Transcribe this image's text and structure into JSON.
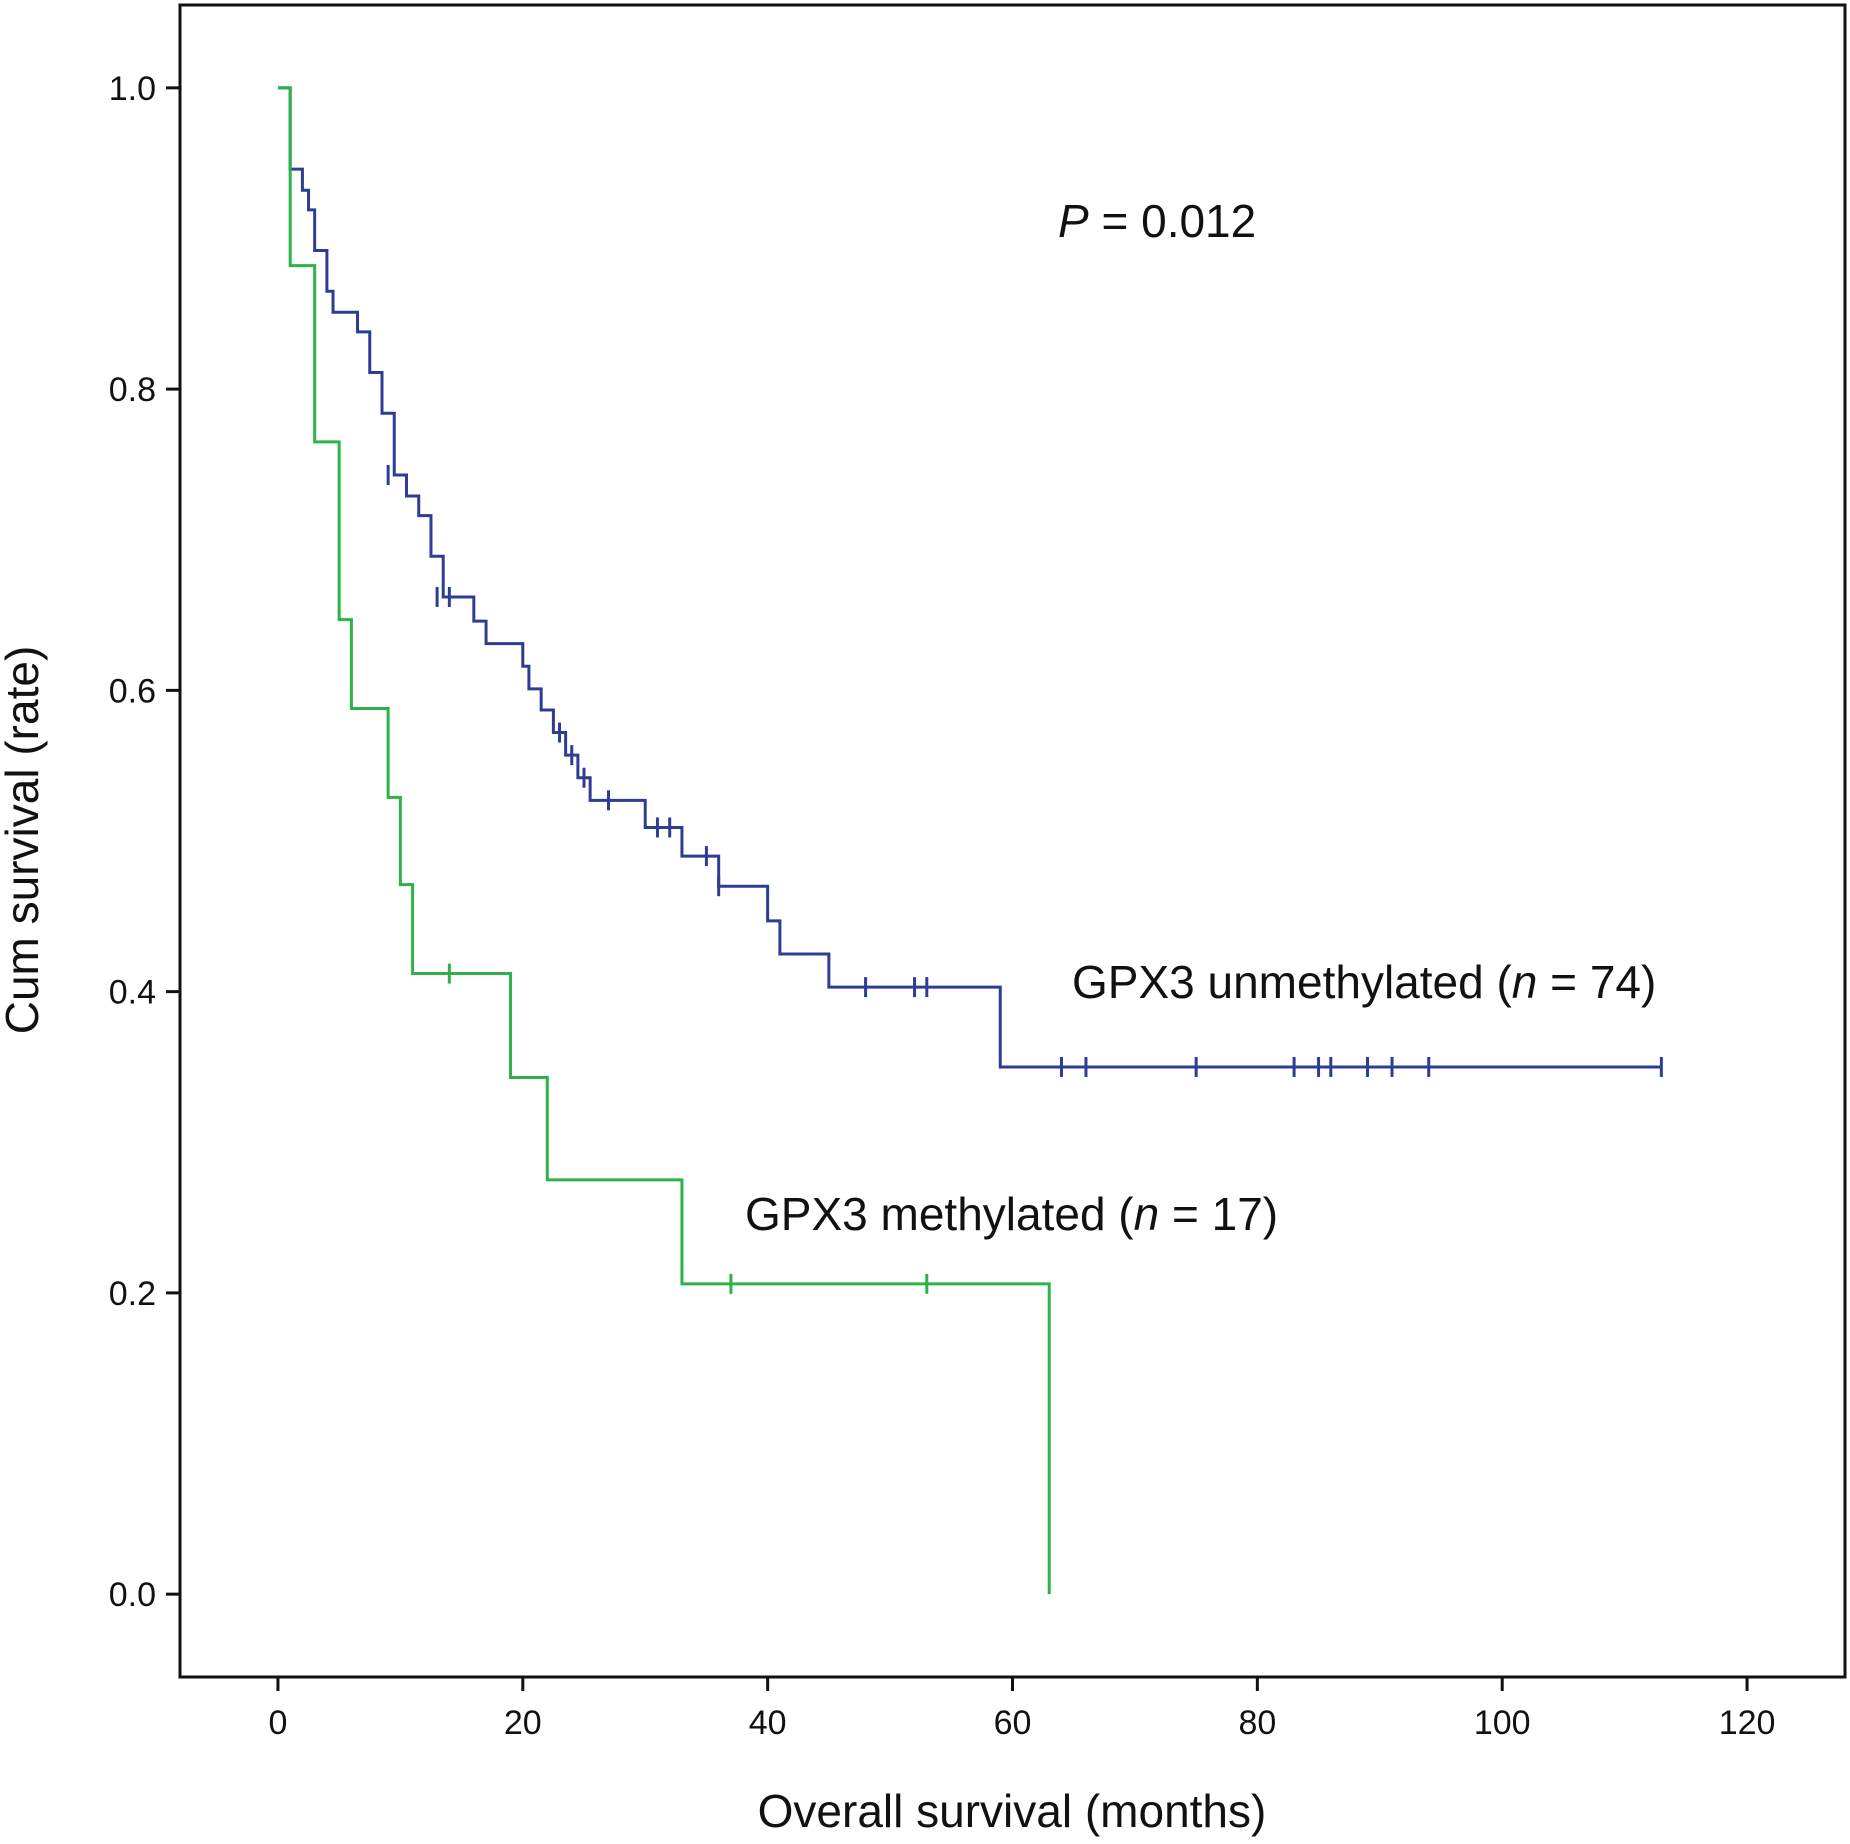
{
  "chart_data": {
    "type": "line",
    "subtype": "kaplan-meier step curves with censor marks",
    "xlabel": "Overall survival (months)",
    "ylabel": "Cum survival (rate)",
    "xlim": [
      -8,
      128
    ],
    "ylim": [
      -0.055,
      1.055
    ],
    "xticks": [
      0,
      20,
      40,
      60,
      80,
      100,
      120
    ],
    "xtick_labels": [
      "0",
      "20",
      "40",
      "60",
      "80",
      "100",
      "120"
    ],
    "yticks": [
      0.0,
      0.2,
      0.4,
      0.6,
      0.8,
      1.0
    ],
    "ytick_labels": [
      "0.0",
      "0.2",
      "0.4",
      "0.6",
      "0.8",
      "1.0"
    ],
    "grid": false,
    "pvalue": {
      "italic": "P",
      "rest": " = 0.012"
    },
    "series": [
      {
        "name": "GPX3 unmethylated",
        "label_prefix": "GPX3 unmethylated (",
        "label_n_symbol": "n",
        "label_suffix": " = 74)",
        "color": "#2e3d93",
        "steps": [
          [
            1,
            0.946
          ],
          [
            2,
            0.932
          ],
          [
            2.5,
            0.919
          ],
          [
            3,
            0.892
          ],
          [
            4,
            0.865
          ],
          [
            4.5,
            0.851
          ],
          [
            6.5,
            0.838
          ],
          [
            7.5,
            0.811
          ],
          [
            8.5,
            0.784
          ],
          [
            9.5,
            0.743
          ],
          [
            10.5,
            0.729
          ],
          [
            11.5,
            0.716
          ],
          [
            12.5,
            0.689
          ],
          [
            13.5,
            0.662
          ],
          [
            16,
            0.646
          ],
          [
            17,
            0.631
          ],
          [
            20,
            0.616
          ],
          [
            20.5,
            0.601
          ],
          [
            21.5,
            0.587
          ],
          [
            22.5,
            0.572
          ],
          [
            23.5,
            0.557
          ],
          [
            24.5,
            0.542
          ],
          [
            25.5,
            0.527
          ],
          [
            30,
            0.509
          ],
          [
            33,
            0.49
          ],
          [
            36,
            0.47
          ],
          [
            40,
            0.447
          ],
          [
            41,
            0.425
          ],
          [
            45,
            0.403
          ],
          [
            59,
            0.35
          ]
        ],
        "end_x": 113,
        "censored": [
          [
            9,
            0.743
          ],
          [
            13,
            0.662
          ],
          [
            14,
            0.662
          ],
          [
            23,
            0.572
          ],
          [
            24,
            0.557
          ],
          [
            25,
            0.542
          ],
          [
            27,
            0.527
          ],
          [
            31,
            0.509
          ],
          [
            32,
            0.509
          ],
          [
            35,
            0.49
          ],
          [
            36,
            0.47
          ],
          [
            48,
            0.403
          ],
          [
            52,
            0.403
          ],
          [
            53,
            0.403
          ],
          [
            64,
            0.35
          ],
          [
            66,
            0.35
          ],
          [
            75,
            0.35
          ],
          [
            83,
            0.35
          ],
          [
            85,
            0.35
          ],
          [
            86,
            0.35
          ],
          [
            89,
            0.35
          ],
          [
            91,
            0.35
          ],
          [
            94,
            0.35
          ],
          [
            113,
            0.35
          ]
        ]
      },
      {
        "name": "GPX3 methylated",
        "label_prefix": "GPX3 methylated (",
        "label_n_symbol": "n",
        "label_suffix": " = 17)",
        "color": "#2db34a",
        "steps": [
          [
            1,
            0.882
          ],
          [
            3,
            0.765
          ],
          [
            5,
            0.647
          ],
          [
            6,
            0.588
          ],
          [
            9,
            0.529
          ],
          [
            10,
            0.471
          ],
          [
            11,
            0.412
          ],
          [
            19,
            0.343
          ],
          [
            22,
            0.275
          ],
          [
            33,
            0.206
          ],
          [
            63,
            0.0
          ]
        ],
        "end_x": 63,
        "censored": [
          [
            14,
            0.412
          ],
          [
            37,
            0.206
          ],
          [
            53,
            0.206
          ]
        ]
      }
    ]
  }
}
